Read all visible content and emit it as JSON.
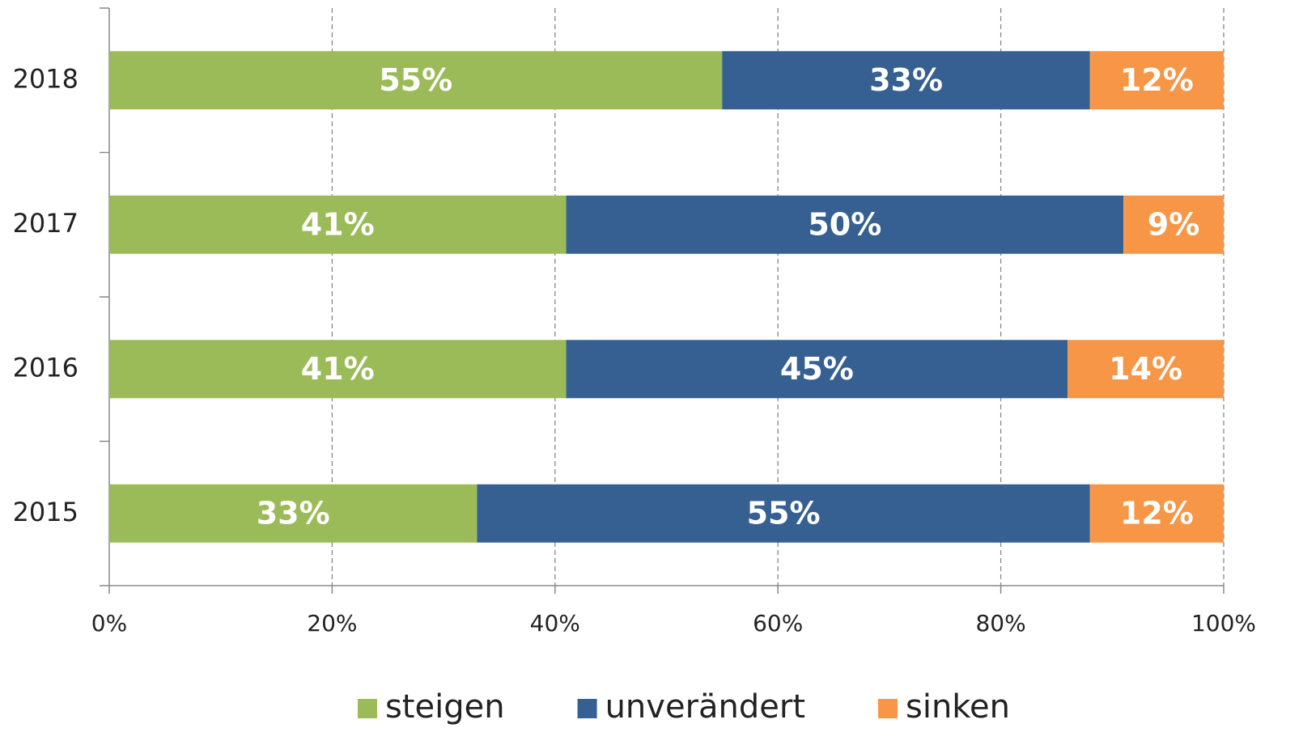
{
  "chart_data": {
    "type": "stacked-bar-horizontal",
    "categories": [
      "2015",
      "2016",
      "2017",
      "2018"
    ],
    "series": [
      {
        "name": "steigen",
        "color": "#9bbb59",
        "values": [
          33,
          41,
          41,
          55
        ],
        "value_labels": [
          "33%",
          "41%",
          "41%",
          "55%"
        ]
      },
      {
        "name": "unverändert",
        "color": "#366092",
        "values": [
          55,
          45,
          50,
          33
        ],
        "value_labels": [
          "55%",
          "45%",
          "50%",
          "33%"
        ]
      },
      {
        "name": "sinken",
        "color": "#f79646",
        "values": [
          12,
          14,
          9,
          12
        ],
        "value_labels": [
          "12%",
          "14%",
          "9%",
          "12%"
        ]
      }
    ],
    "xlim": [
      0,
      100
    ],
    "xticks": [
      {
        "value": 0,
        "label": "0%"
      },
      {
        "value": 20,
        "label": "20%"
      },
      {
        "value": 40,
        "label": "40%"
      },
      {
        "value": 60,
        "label": "60%"
      },
      {
        "value": 80,
        "label": "80%"
      },
      {
        "value": 100,
        "label": "100%"
      }
    ],
    "grid": true,
    "legend": "bottom"
  }
}
